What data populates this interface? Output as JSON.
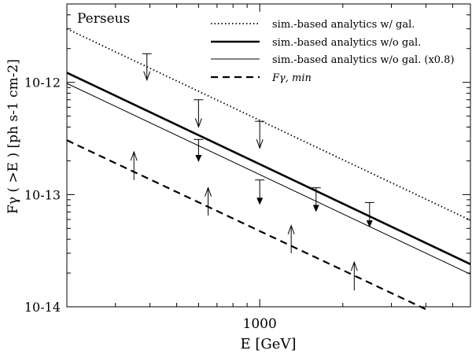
{
  "chart_data": {
    "type": "line",
    "title": "",
    "panel_label": "Perseus",
    "xlabel": "E [GeV]",
    "ylabel": "Fγ ( >E ) [ph s-1 cm-2]",
    "xscale": "log",
    "yscale": "log",
    "xlim": [
      200,
      5800
    ],
    "ylim": [
      1e-14,
      5e-12
    ],
    "x_tick_labels": [
      {
        "value": 1000,
        "label": "1000"
      }
    ],
    "y_tick_labels": [
      {
        "value": 1e-12,
        "label": "10-12"
      },
      {
        "value": 1e-13,
        "label": "10-13"
      },
      {
        "value": 1e-14,
        "label": "10-14"
      }
    ],
    "legend_position": "top-right",
    "series": [
      {
        "name": "sim.-based analytics w/ gal.",
        "style": "dotted",
        "x": [
          200,
          5800
        ],
        "y": [
          3e-12,
          5.9e-14
        ]
      },
      {
        "name": "sim.-based analytics w/o gal.",
        "style": "thick",
        "x": [
          200,
          5800
        ],
        "y": [
          1.22e-12,
          2.4e-14
        ]
      },
      {
        "name": "sim.-based analytics w/o gal.  (x0.8)",
        "style": "thin",
        "x": [
          200,
          5800
        ],
        "y": [
          9.8e-13,
          1.95e-14
        ]
      },
      {
        "name": "Fγ, min",
        "style": "dashed",
        "x": [
          200,
          4000
        ],
        "y": [
          3.05e-13,
          9.5e-15
        ]
      }
    ],
    "upper_limits_open": [
      {
        "x": 390,
        "y_bar": 1.8e-12,
        "y_tip": 1.05e-12
      },
      {
        "x": 600,
        "y_bar": 7e-13,
        "y_tip": 4e-13
      },
      {
        "x": 1000,
        "y_bar": 4.5e-13,
        "y_tip": 2.6e-13
      }
    ],
    "upper_limits_filled": [
      {
        "x": 600,
        "y_bar": 3.1e-13,
        "y_tip": 1.95e-13
      },
      {
        "x": 1000,
        "y_bar": 1.35e-13,
        "y_tip": 8.1e-14
      },
      {
        "x": 1600,
        "y_bar": 1.15e-13,
        "y_tip": 7e-14
      },
      {
        "x": 2500,
        "y_bar": 8.5e-14,
        "y_tip": 5.1e-14
      }
    ],
    "lower_limits": [
      {
        "x": 350,
        "y_bar": 1.35e-13,
        "y_tip": 2.4e-13
      },
      {
        "x": 650,
        "y_bar": 6.5e-14,
        "y_tip": 1.15e-13
      },
      {
        "x": 1300,
        "y_bar": 3e-14,
        "y_tip": 5.3e-14
      },
      {
        "x": 2200,
        "y_bar": 1.4e-14,
        "y_tip": 2.5e-14
      }
    ]
  }
}
